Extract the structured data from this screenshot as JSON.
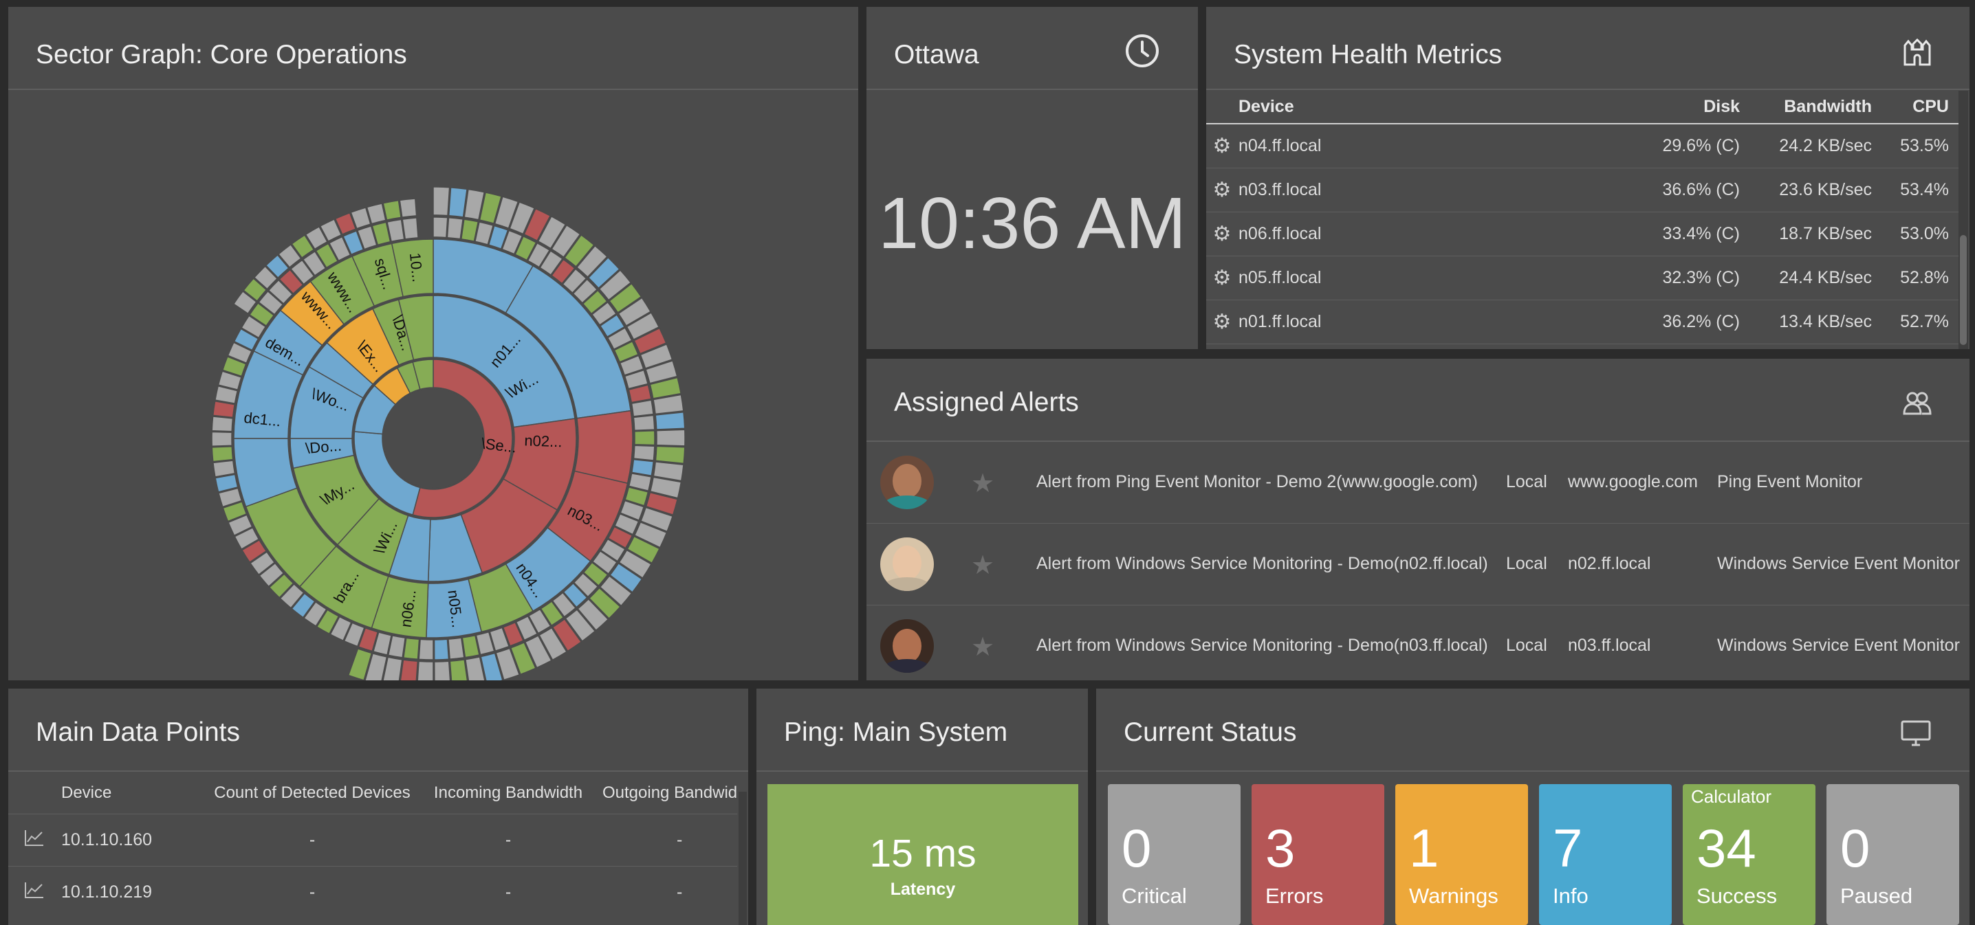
{
  "sector": {
    "title": "Sector Graph: Core Operations",
    "labels": [
      "\\Se...",
      "\\Wi...",
      "n01...",
      "n02...",
      "n03...",
      "n04...",
      "n05...",
      "n06...",
      "\\Wi...",
      "bra...",
      "\\My...",
      "\\Do...",
      "dc1...",
      "dem...",
      "\\Wo...",
      "www...",
      "www...",
      "\\Ex...",
      "sql...",
      "\\Da...",
      "10..."
    ]
  },
  "clock": {
    "city": "Ottawa",
    "time": "10:36 AM"
  },
  "health": {
    "title": "System Health Metrics",
    "columns": [
      "Device",
      "Disk",
      "Bandwidth",
      "CPU"
    ],
    "rows": [
      {
        "device": "n04.ff.local",
        "disk": "29.6% (C)",
        "bandwidth": "24.2 KB/sec",
        "cpu": "53.5%"
      },
      {
        "device": "n03.ff.local",
        "disk": "36.6% (C)",
        "bandwidth": "23.6 KB/sec",
        "cpu": "53.4%"
      },
      {
        "device": "n06.ff.local",
        "disk": "33.4% (C)",
        "bandwidth": "18.7 KB/sec",
        "cpu": "53.0%"
      },
      {
        "device": "n05.ff.local",
        "disk": "32.3% (C)",
        "bandwidth": "24.4 KB/sec",
        "cpu": "52.8%"
      },
      {
        "device": "n01.ff.local",
        "disk": "36.2% (C)",
        "bandwidth": "13.4 KB/sec",
        "cpu": "52.7%"
      }
    ]
  },
  "alerts": {
    "title": "Assigned Alerts",
    "rows": [
      {
        "message": "Alert from Ping Event Monitor - Demo 2(www.google.com)",
        "scope": "Local",
        "device": "www.google.com",
        "monitor": "Ping Event Monitor",
        "avatar_color": "#6b4a3a"
      },
      {
        "message": "Alert from Windows Service Monitoring - Demo(n02.ff.local)",
        "scope": "Local",
        "device": "n02.ff.local",
        "monitor": "Windows Service Event Monitor",
        "avatar_color": "#c9a78a"
      },
      {
        "message": "Alert from Windows Service Monitoring - Demo(n03.ff.local)",
        "scope": "Local",
        "device": "n03.ff.local",
        "monitor": "Windows Service Event Monitor",
        "avatar_color": "#8a5a40"
      }
    ]
  },
  "datapoints": {
    "title": "Main Data Points",
    "columns": [
      "Device",
      "Count of Detected Devices",
      "Incoming Bandwidth",
      "Outgoing Bandwidth"
    ],
    "rows": [
      {
        "device": "10.1.10.160",
        "count": "-",
        "incoming": "-",
        "outgoing": "-"
      },
      {
        "device": "10.1.10.219",
        "count": "-",
        "incoming": "-",
        "outgoing": "-"
      }
    ]
  },
  "ping": {
    "title": "Ping: Main System",
    "value": "15 ms",
    "label": "Latency",
    "color": "#8aad5a"
  },
  "status": {
    "title": "Current Status",
    "tiles": [
      {
        "count": "0",
        "label": "Critical",
        "color": "#a0a0a0",
        "tag": ""
      },
      {
        "count": "3",
        "label": "Errors",
        "color": "#b55656",
        "tag": ""
      },
      {
        "count": "1",
        "label": "Warnings",
        "color": "#eda83a",
        "tag": ""
      },
      {
        "count": "7",
        "label": "Info",
        "color": "#4aa8d0",
        "tag": ""
      },
      {
        "count": "34",
        "label": "Success",
        "color": "#86ac55",
        "tag": "Calculator"
      },
      {
        "count": "0",
        "label": "Paused",
        "color": "#a0a0a0",
        "tag": ""
      }
    ]
  },
  "icons": {
    "clock": "clock-icon",
    "health": "castle-icon",
    "alerts": "users-icon",
    "status": "monitor-icon",
    "row": "gear-icon",
    "dp": "chart-line-icon",
    "star": "star-icon"
  }
}
